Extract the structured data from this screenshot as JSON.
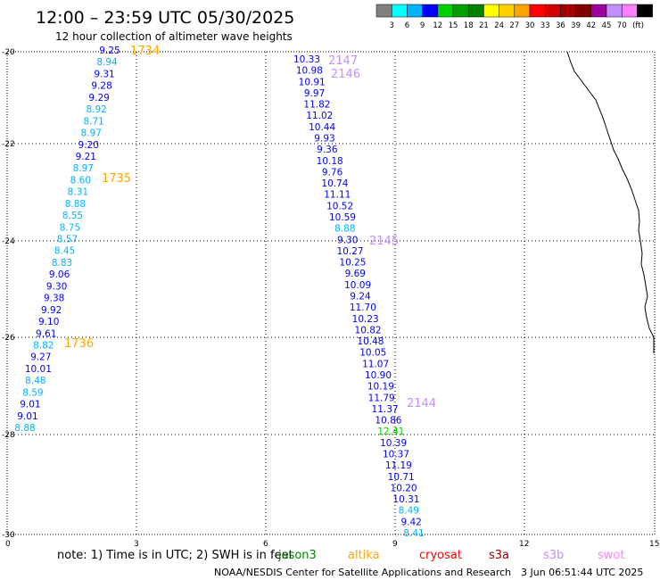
{
  "header": {
    "title": "12:00 – 23:59 UTC 05/30/2025",
    "subtitle": "12 hour collection of altimeter wave heights"
  },
  "legend": {
    "colors": [
      "#808080",
      "#00ffff",
      "#00b2ff",
      "#0000ff",
      "#00d000",
      "#00a000",
      "#008000",
      "#ffff00",
      "#ffd000",
      "#ffa500",
      "#ff0000",
      "#d00000",
      "#a00000",
      "#800000",
      "#a000a0",
      "#c090ff",
      "#ff80ff",
      "#000000"
    ],
    "labels": [
      "3",
      "6",
      "9",
      "12",
      "15",
      "18",
      "21",
      "24",
      "27",
      "30",
      "33",
      "36",
      "39",
      "42",
      "45",
      "70",
      "(ft)"
    ]
  },
  "axes": {
    "y_ticks": [
      "-20",
      "-22",
      "-24",
      "-26",
      "-28",
      "-30"
    ],
    "x_ticks": [
      "0",
      "3",
      "6",
      "9",
      "12",
      "15"
    ]
  },
  "track_a": {
    "values": [
      "9.25",
      "8.94",
      "9.31",
      "9.28",
      "9.29",
      "8.92",
      "8.71",
      "8.97",
      "9.20",
      "9.21",
      "8.97",
      "8.60",
      "8.31",
      "8.88",
      "8.55",
      "8.75",
      "8.57",
      "8.45",
      "8.83",
      "9.06",
      "9.30",
      "9.38",
      "9.92",
      "9.10",
      "9.61",
      "8.82",
      "9.27",
      "10.01",
      "8.48",
      "8.59",
      "9.01",
      "9.01",
      "8.88"
    ],
    "colors": [
      "#0000ff",
      "#00b2ff",
      "#0000ff",
      "#0000ff",
      "#0000ff",
      "#00b2ff",
      "#00b2ff",
      "#00b2ff",
      "#0000ff",
      "#0000ff",
      "#00b2ff",
      "#00b2ff",
      "#00b2ff",
      "#00b2ff",
      "#00b2ff",
      "#00b2ff",
      "#00b2ff",
      "#00b2ff",
      "#00b2ff",
      "#0000ff",
      "#0000ff",
      "#0000ff",
      "#0000ff",
      "#0000ff",
      "#0000ff",
      "#00b2ff",
      "#0000ff",
      "#0000ff",
      "#00b2ff",
      "#00b2ff",
      "#0000ff",
      "#0000ff",
      "#00b2ff"
    ],
    "times": [
      "1734",
      "1735",
      "1736"
    ]
  },
  "track_b": {
    "values": [
      "10.33",
      "10.98",
      "10.91",
      "9.97",
      "11.82",
      "11.02",
      "10.44",
      "9.93",
      "9.36",
      "10.18",
      "9.76",
      "10.74",
      "11.11",
      "10.52",
      "10.59",
      "8.88",
      "9.30",
      "10.27",
      "10.25",
      "9.69",
      "10.09",
      "9.24",
      "11.70",
      "10.23",
      "10.82",
      "10.48",
      "10.05",
      "11.07",
      "10.90",
      "10.19",
      "11.79",
      "11.37",
      "10.86",
      "12.41",
      "10.39",
      "10.37",
      "11.19",
      "10.71",
      "10.20",
      "10.31",
      "8.49",
      "9.42",
      "8.41"
    ],
    "colors": [
      "#0000ff",
      "#0000ff",
      "#0000ff",
      "#0000ff",
      "#0000ff",
      "#0000ff",
      "#0000ff",
      "#0000ff",
      "#0000ff",
      "#0000ff",
      "#0000ff",
      "#0000ff",
      "#0000ff",
      "#0000ff",
      "#0000ff",
      "#00b2ff",
      "#0000ff",
      "#0000ff",
      "#0000ff",
      "#0000ff",
      "#0000ff",
      "#0000ff",
      "#0000ff",
      "#0000ff",
      "#0000ff",
      "#0000ff",
      "#0000ff",
      "#0000ff",
      "#0000ff",
      "#0000ff",
      "#0000ff",
      "#0000ff",
      "#0000ff",
      "#00d000",
      "#0000ff",
      "#0000ff",
      "#0000ff",
      "#0000ff",
      "#0000ff",
      "#0000ff",
      "#00b2ff",
      "#0000ff",
      "#00b2ff"
    ],
    "times": [
      "2147",
      "2146",
      "2145",
      "2144"
    ]
  },
  "footer": {
    "note": "note: 1) Time is in UTC; 2) SWH is in feet",
    "satellites": [
      {
        "name": "jason3",
        "color": "#008000"
      },
      {
        "name": "altika",
        "color": "#ffa500"
      },
      {
        "name": "cryosat",
        "color": "#ff0000"
      },
      {
        "name": "s3a",
        "color": "#a00000"
      },
      {
        "name": "s3b",
        "color": "#c090ff"
      },
      {
        "name": "swot",
        "color": "#ff80ff"
      }
    ],
    "credit": "NOAA/NESDIS Center for Satellite Applications and Research",
    "timestamp": "3 Jun 06:51:44 UTC 2025"
  }
}
